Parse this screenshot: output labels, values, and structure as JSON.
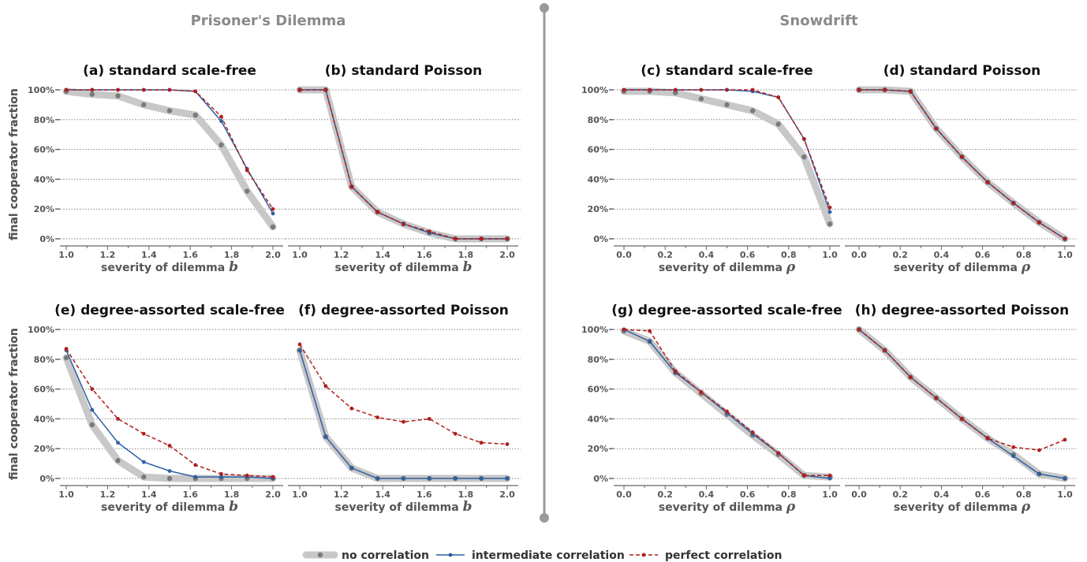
{
  "headers": {
    "left": "Prisoner's Dilemma",
    "right": "Snowdrift"
  },
  "legend": [
    {
      "key": "none",
      "label": "no correlation"
    },
    {
      "key": "inter",
      "label": "intermediate correlation"
    },
    {
      "key": "perfect",
      "label": "perfect correlation"
    }
  ],
  "colors": {
    "none": "#c8c8c8",
    "none_marker": "#7a7a7a",
    "inter": "#2d5fa3",
    "perfect": "#b01e1e",
    "grid": "#888888",
    "axis": "#666666",
    "divider": "#9a9a9a"
  },
  "chart_data": [
    {
      "id": "a",
      "type": "line",
      "title": "(a) standard scale-free",
      "xlabel": "severity of dilemma",
      "xvar": "b",
      "ylabel": "final cooperator fraction",
      "xlim": [
        1.0,
        2.0
      ],
      "xticks": [
        "1.0",
        "1.2",
        "1.4",
        "1.6",
        "1.8",
        "2.0"
      ],
      "ylim": [
        0,
        100
      ],
      "yticks": [
        "0%",
        "20%",
        "40%",
        "60%",
        "80%",
        "100%"
      ],
      "show_yticks": true,
      "x": [
        1.0,
        1.125,
        1.25,
        1.375,
        1.5,
        1.625,
        1.75,
        1.875,
        2.0
      ],
      "series": [
        {
          "key": "none",
          "values": [
            99,
            97,
            96,
            90,
            86,
            83,
            63,
            32,
            8
          ]
        },
        {
          "key": "inter",
          "values": [
            100,
            100,
            100,
            100,
            100,
            99,
            79,
            47,
            17
          ]
        },
        {
          "key": "perfect",
          "values": [
            100,
            100,
            100,
            100,
            100,
            99,
            82,
            46,
            20
          ]
        }
      ]
    },
    {
      "id": "b",
      "type": "line",
      "title": "(b) standard Poisson",
      "xlabel": "severity of dilemma",
      "xvar": "b",
      "ylabel": "",
      "xlim": [
        1.0,
        2.0
      ],
      "xticks": [
        "1.0",
        "1.2",
        "1.4",
        "1.6",
        "1.8",
        "2.0"
      ],
      "ylim": [
        0,
        100
      ],
      "yticks": [
        "0%",
        "20%",
        "40%",
        "60%",
        "80%",
        "100%"
      ],
      "show_yticks": false,
      "x": [
        1.0,
        1.125,
        1.25,
        1.375,
        1.5,
        1.625,
        1.75,
        1.875,
        2.0
      ],
      "series": [
        {
          "key": "none",
          "values": [
            100,
            100,
            35,
            18,
            10,
            4,
            0,
            0,
            0
          ]
        },
        {
          "key": "inter",
          "values": [
            100,
            100,
            35,
            18,
            10,
            4,
            0,
            0,
            0
          ]
        },
        {
          "key": "perfect",
          "values": [
            100,
            100,
            35,
            18,
            10,
            5,
            0,
            0,
            0
          ]
        }
      ]
    },
    {
      "id": "c",
      "type": "line",
      "title": "(c) standard scale-free",
      "xlabel": "severity of dilemma",
      "xvar": "ρ",
      "ylabel": "final cooperator fraction",
      "xlim": [
        0.0,
        1.0
      ],
      "xticks": [
        "0.0",
        "0.2",
        "0.4",
        "0.6",
        "0.8",
        "1.0"
      ],
      "ylim": [
        0,
        100
      ],
      "yticks": [
        "0%",
        "20%",
        "40%",
        "60%",
        "80%",
        "100%"
      ],
      "show_yticks": true,
      "x": [
        0.0,
        0.125,
        0.25,
        0.375,
        0.5,
        0.625,
        0.75,
        0.875,
        1.0
      ],
      "series": [
        {
          "key": "none",
          "values": [
            99,
            99,
            98,
            94,
            90,
            86,
            77,
            55,
            10
          ]
        },
        {
          "key": "inter",
          "values": [
            100,
            100,
            100,
            100,
            100,
            99,
            95,
            67,
            18
          ]
        },
        {
          "key": "perfect",
          "values": [
            100,
            100,
            100,
            100,
            100,
            100,
            95,
            67,
            21
          ]
        }
      ]
    },
    {
      "id": "d",
      "type": "line",
      "title": "(d) standard Poisson",
      "xlabel": "severity of dilemma",
      "xvar": "ρ",
      "ylabel": "",
      "xlim": [
        0.0,
        1.0
      ],
      "xticks": [
        "0.0",
        "0.2",
        "0.4",
        "0.6",
        "0.8",
        "1.0"
      ],
      "ylim": [
        0,
        100
      ],
      "yticks": [
        "0%",
        "20%",
        "40%",
        "60%",
        "80%",
        "100%"
      ],
      "show_yticks": false,
      "x": [
        0.0,
        0.125,
        0.25,
        0.375,
        0.5,
        0.625,
        0.75,
        0.875,
        1.0
      ],
      "series": [
        {
          "key": "none",
          "values": [
            100,
            100,
            99,
            74,
            55,
            38,
            24,
            11,
            0
          ]
        },
        {
          "key": "inter",
          "values": [
            100,
            100,
            99,
            74,
            55,
            38,
            24,
            11,
            0
          ]
        },
        {
          "key": "perfect",
          "values": [
            100,
            100,
            99,
            74,
            55,
            38,
            24,
            11,
            0
          ]
        }
      ]
    },
    {
      "id": "e",
      "type": "line",
      "title": "(e) degree-assorted scale-free",
      "xlabel": "severity of dilemma",
      "xvar": "b",
      "ylabel": "final cooperator fraction",
      "xlim": [
        1.0,
        2.0
      ],
      "xticks": [
        "1.0",
        "1.2",
        "1.4",
        "1.6",
        "1.8",
        "2.0"
      ],
      "ylim": [
        0,
        100
      ],
      "yticks": [
        "0%",
        "20%",
        "40%",
        "60%",
        "80%",
        "100%"
      ],
      "show_yticks": true,
      "x": [
        1.0,
        1.125,
        1.25,
        1.375,
        1.5,
        1.625,
        1.75,
        1.875,
        2.0
      ],
      "series": [
        {
          "key": "none",
          "values": [
            81,
            36,
            12,
            1,
            0,
            0,
            0,
            0,
            0
          ]
        },
        {
          "key": "inter",
          "values": [
            86,
            46,
            24,
            11,
            5,
            1,
            1,
            1,
            0
          ]
        },
        {
          "key": "perfect",
          "values": [
            87,
            60,
            40,
            30,
            22,
            9,
            3,
            2,
            1
          ]
        }
      ]
    },
    {
      "id": "f",
      "type": "line",
      "title": "(f) degree-assorted Poisson",
      "xlabel": "severity of dilemma",
      "xvar": "b",
      "ylabel": "",
      "xlim": [
        1.0,
        2.0
      ],
      "xticks": [
        "1.0",
        "1.2",
        "1.4",
        "1.6",
        "1.8",
        "2.0"
      ],
      "ylim": [
        0,
        100
      ],
      "yticks": [
        "0%",
        "20%",
        "40%",
        "60%",
        "80%",
        "100%"
      ],
      "show_yticks": false,
      "x": [
        1.0,
        1.125,
        1.25,
        1.375,
        1.5,
        1.625,
        1.75,
        1.875,
        2.0
      ],
      "series": [
        {
          "key": "none",
          "values": [
            86,
            28,
            7,
            0,
            0,
            0,
            0,
            0,
            0
          ]
        },
        {
          "key": "inter",
          "values": [
            86,
            28,
            7,
            0,
            0,
            0,
            0,
            0,
            0
          ]
        },
        {
          "key": "perfect",
          "values": [
            90,
            62,
            47,
            41,
            38,
            40,
            30,
            24,
            23
          ]
        }
      ]
    },
    {
      "id": "g",
      "type": "line",
      "title": "(g) degree-assorted scale-free",
      "xlabel": "severity of dilemma",
      "xvar": "ρ",
      "ylabel": "final cooperator fraction",
      "xlim": [
        0.0,
        1.0
      ],
      "xticks": [
        "0.0",
        "0.2",
        "0.4",
        "0.6",
        "0.8",
        "1.0"
      ],
      "ylim": [
        0,
        100
      ],
      "yticks": [
        "0%",
        "20%",
        "40%",
        "60%",
        "80%",
        "100%"
      ],
      "show_yticks": true,
      "x": [
        0.0,
        0.125,
        0.25,
        0.375,
        0.5,
        0.625,
        0.75,
        0.875,
        1.0
      ],
      "series": [
        {
          "key": "none",
          "values": [
            99,
            92,
            71,
            57,
            43,
            29,
            16,
            2,
            1
          ]
        },
        {
          "key": "inter",
          "values": [
            100,
            92,
            71,
            58,
            44,
            30,
            17,
            2,
            0
          ]
        },
        {
          "key": "perfect",
          "values": [
            100,
            99,
            72,
            58,
            45,
            31,
            17,
            2,
            2
          ]
        }
      ]
    },
    {
      "id": "h",
      "type": "line",
      "title": "(h) degree-assorted Poisson",
      "xlabel": "severity of dilemma",
      "xvar": "ρ",
      "ylabel": "",
      "xlim": [
        0.0,
        1.0
      ],
      "xticks": [
        "0.0",
        "0.2",
        "0.4",
        "0.6",
        "0.8",
        "1.0"
      ],
      "ylim": [
        0,
        100
      ],
      "yticks": [
        "0%",
        "20%",
        "40%",
        "60%",
        "80%",
        "100%"
      ],
      "show_yticks": false,
      "x": [
        0.0,
        0.125,
        0.25,
        0.375,
        0.5,
        0.625,
        0.75,
        0.875,
        1.0
      ],
      "series": [
        {
          "key": "none",
          "values": [
            100,
            86,
            68,
            54,
            40,
            27,
            16,
            3,
            0
          ]
        },
        {
          "key": "inter",
          "values": [
            100,
            86,
            68,
            54,
            40,
            27,
            15,
            3,
            0
          ]
        },
        {
          "key": "perfect",
          "values": [
            100,
            86,
            68,
            54,
            40,
            27,
            21,
            19,
            26
          ]
        }
      ]
    }
  ]
}
